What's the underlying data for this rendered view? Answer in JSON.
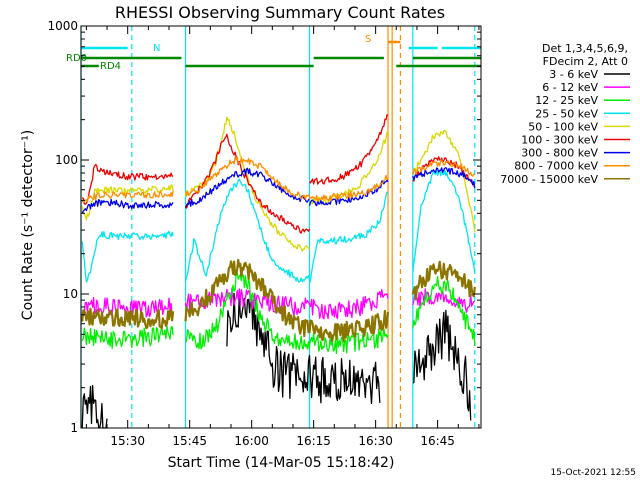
{
  "chart_data": {
    "type": "line",
    "title": "RHESSI Observing Summary Count Rates",
    "xlabel": "Start Time (14-Mar-05 15:18:42)",
    "ylabel": "Count Rate (s⁻¹ detector⁻¹)",
    "xlim": [
      "15:18:42",
      "16:55:30"
    ],
    "ylim": [
      1,
      1000
    ],
    "yscale": "log",
    "x_ticks": [
      "15:30",
      "15:45",
      "16:00",
      "16:15",
      "16:30",
      "16:45"
    ],
    "y_ticks": [
      {
        "value": 1,
        "label": "1"
      },
      {
        "value": 10,
        "label": "10"
      },
      {
        "value": 100,
        "label": "100"
      },
      {
        "value": 1000,
        "label": "1000"
      }
    ],
    "legend": {
      "position": "right",
      "header": [
        "Det 1,3,4,5,6,9,",
        "FDecim 2, Att 0"
      ],
      "entries": [
        {
          "name": "3 - 6 keV",
          "color": "#000000"
        },
        {
          "name": "6 - 12 keV",
          "color": "#ff00ff"
        },
        {
          "name": "12 - 25 keV",
          "color": "#00ee00"
        },
        {
          "name": "25 - 50 keV",
          "color": "#00e5ee"
        },
        {
          "name": "50 - 100 keV",
          "color": "#d8d800"
        },
        {
          "name": "100 - 300 keV",
          "color": "#ee0000"
        },
        {
          "name": "300 - 800 keV",
          "color": "#0000ee"
        },
        {
          "name": "800 - 7000 keV",
          "color": "#ff8c00"
        },
        {
          "name": "7000 - 15000 keV",
          "color": "#8b7500"
        }
      ]
    },
    "series": [
      {
        "name": "3 - 6 keV",
        "color": "#000000",
        "segments": [
          {
            "x": [
              "15:19",
              "15:21",
              "15:23",
              "15:25"
            ],
            "y": [
              1.1,
              1.6,
              1.2,
              1.0
            ]
          },
          {
            "x": [
              "15:54",
              "15:56",
              "15:58",
              "16:00",
              "16:02",
              "16:05",
              "16:08",
              "16:12",
              "16:16",
              "16:20",
              "16:25",
              "16:28",
              "16:31"
            ],
            "y": [
              5,
              7,
              9,
              8,
              5,
              3,
              2.5,
              2.3,
              2.3,
              2.2,
              2.2,
              2.1,
              2.2
            ]
          },
          {
            "x": [
              "16:39",
              "16:41",
              "16:44",
              "16:47",
              "16:50",
              "16:52",
              "16:53"
            ],
            "y": [
              2.8,
              3.2,
              4,
              5,
              3.2,
              2.2,
              1.2
            ]
          }
        ]
      },
      {
        "name": "6 - 12 keV",
        "color": "#ff00ff",
        "segments": [
          {
            "x": [
              "15:19",
              "15:25",
              "15:30",
              "15:35",
              "15:41"
            ],
            "y": [
              8,
              8,
              7.5,
              7.8,
              8
            ]
          },
          {
            "x": [
              "15:44",
              "15:48",
              "15:52",
              "15:56",
              "16:00",
              "16:05",
              "16:10",
              "16:14"
            ],
            "y": [
              8.5,
              9,
              9.5,
              9.5,
              9,
              8.5,
              8,
              8
            ]
          },
          {
            "x": [
              "16:14",
              "16:18",
              "16:22",
              "16:26",
              "16:30",
              "16:33"
            ],
            "y": [
              8,
              7.5,
              7.5,
              8,
              9,
              10
            ]
          },
          {
            "x": [
              "16:39",
              "16:44",
              "16:48",
              "16:52",
              "16:54"
            ],
            "y": [
              9,
              9.5,
              9,
              8.5,
              8.5
            ]
          }
        ]
      },
      {
        "name": "12 - 25 keV",
        "color": "#00ee00",
        "segments": [
          {
            "x": [
              "15:19",
              "15:25",
              "15:30",
              "15:35",
              "15:41"
            ],
            "y": [
              5,
              4.5,
              4.5,
              4.8,
              5
            ]
          },
          {
            "x": [
              "15:44",
              "15:48",
              "15:52",
              "15:55",
              "15:57",
              "15:59",
              "16:01",
              "16:03",
              "16:05",
              "16:08",
              "16:11",
              "16:14"
            ],
            "y": [
              5,
              4.5,
              6,
              11,
              13,
              12,
              8,
              6,
              5,
              4.5,
              4.5,
              4.5
            ]
          },
          {
            "x": [
              "16:14",
              "16:18",
              "16:22",
              "16:26",
              "16:30",
              "16:33"
            ],
            "y": [
              4.5,
              4.2,
              4.2,
              4.4,
              4.6,
              5
            ]
          },
          {
            "x": [
              "16:39",
              "16:42",
              "16:45",
              "16:48",
              "16:51",
              "16:54"
            ],
            "y": [
              6,
              9,
              12,
              11,
              7,
              4.5
            ]
          }
        ]
      },
      {
        "name": "25 - 50 keV",
        "color": "#00e5ee",
        "segments": [
          {
            "x": [
              "15:19",
              "15:20",
              "15:21",
              "15:23",
              "15:27",
              "15:32",
              "15:37",
              "15:41"
            ],
            "y": [
              25,
              12,
              15,
              28,
              27,
              27,
              27,
              28
            ]
          },
          {
            "x": [
              "15:44",
              "15:46",
              "15:49",
              "15:51",
              "15:53",
              "15:55",
              "15:57",
              "15:59",
              "16:01",
              "16:03",
              "16:05",
              "16:08",
              "16:11",
              "16:14"
            ],
            "y": [
              12,
              25,
              14,
              25,
              45,
              60,
              70,
              60,
              40,
              25,
              18,
              15,
              13,
              13
            ]
          },
          {
            "x": [
              "16:14",
              "16:16",
              "16:20",
              "16:24",
              "16:28",
              "16:31",
              "16:33"
            ],
            "y": [
              12,
              25,
              25,
              26,
              28,
              35,
              60
            ]
          },
          {
            "x": [
              "16:39",
              "16:41",
              "16:44",
              "16:47",
              "16:50",
              "16:52",
              "16:54"
            ],
            "y": [
              15,
              45,
              80,
              80,
              55,
              30,
              15
            ]
          }
        ]
      },
      {
        "name": "50 - 100 keV",
        "color": "#d8d800",
        "segments": [
          {
            "x": [
              "15:19",
              "15:20",
              "15:22",
              "15:25",
              "15:30",
              "15:35",
              "15:41"
            ],
            "y": [
              45,
              35,
              60,
              60,
              58,
              60,
              62
            ]
          },
          {
            "x": [
              "15:44",
              "15:46",
              "15:49",
              "15:51",
              "15:53",
              "15:54",
              "15:56",
              "15:58",
              "16:00",
              "16:03",
              "16:06",
              "16:09",
              "16:12",
              "16:14"
            ],
            "y": [
              55,
              60,
              70,
              90,
              150,
              210,
              150,
              90,
              60,
              40,
              30,
              25,
              22,
              22
            ]
          },
          {
            "x": [
              "16:14",
              "16:18",
              "16:22",
              "16:26",
              "16:30",
              "16:33"
            ],
            "y": [
              50,
              50,
              55,
              65,
              95,
              160
            ]
          },
          {
            "x": [
              "16:39",
              "16:41",
              "16:44",
              "16:47",
              "16:50",
              "16:52",
              "16:54"
            ],
            "y": [
              80,
              100,
              150,
              160,
              110,
              60,
              30
            ]
          }
        ]
      },
      {
        "name": "100 - 300 keV",
        "color": "#ee0000",
        "segments": [
          {
            "x": [
              "15:19",
              "15:20",
              "15:22",
              "15:25",
              "15:30",
              "15:35",
              "15:41"
            ],
            "y": [
              55,
              45,
              90,
              80,
              75,
              75,
              78
            ]
          },
          {
            "x": [
              "15:44",
              "15:46",
              "15:49",
              "15:51",
              "15:53",
              "15:54",
              "15:56",
              "15:58",
              "16:00",
              "16:03",
              "16:06",
              "16:09",
              "16:12",
              "16:14"
            ],
            "y": [
              45,
              55,
              70,
              95,
              140,
              150,
              110,
              80,
              60,
              45,
              38,
              34,
              30,
              30
            ]
          },
          {
            "x": [
              "16:14",
              "16:18",
              "16:22",
              "16:26",
              "16:30",
              "16:33"
            ],
            "y": [
              70,
              70,
              75,
              90,
              130,
              220
            ]
          },
          {
            "x": [
              "16:39",
              "16:41",
              "16:44",
              "16:47",
              "16:50",
              "16:52",
              "16:54"
            ],
            "y": [
              70,
              85,
              100,
              100,
              90,
              75,
              60
            ]
          }
        ]
      },
      {
        "name": "300 - 800 keV",
        "color": "#0000ee",
        "segments": [
          {
            "x": [
              "15:19",
              "15:21",
              "15:23",
              "15:26",
              "15:30",
              "15:35",
              "15:41"
            ],
            "y": [
              42,
              45,
              48,
              48,
              46,
              46,
              47
            ]
          },
          {
            "x": [
              "15:44",
              "15:47",
              "15:50",
              "15:53",
              "15:56",
              "15:59",
              "16:02",
              "16:05",
              "16:08",
              "16:11",
              "16:14"
            ],
            "y": [
              46,
              50,
              58,
              68,
              78,
              82,
              78,
              68,
              58,
              52,
              50
            ]
          },
          {
            "x": [
              "16:14",
              "16:18",
              "16:22",
              "16:26",
              "16:30",
              "16:33"
            ],
            "y": [
              48,
              48,
              50,
              52,
              60,
              72
            ]
          },
          {
            "x": [
              "16:39",
              "16:42",
              "16:45",
              "16:48",
              "16:51",
              "16:54"
            ],
            "y": [
              75,
              80,
              85,
              83,
              78,
              65
            ]
          }
        ]
      },
      {
        "name": "800 - 7000 keV",
        "color": "#ff8c00",
        "segments": [
          {
            "x": [
              "15:19",
              "15:21",
              "15:24",
              "15:28",
              "15:32",
              "15:36",
              "15:41"
            ],
            "y": [
              50,
              52,
              55,
              55,
              55,
              55,
              56
            ]
          },
          {
            "x": [
              "15:44",
              "15:47",
              "15:50",
              "15:53",
              "15:56",
              "15:59",
              "16:02",
              "16:05",
              "16:08",
              "16:11",
              "16:14"
            ],
            "y": [
              55,
              60,
              72,
              88,
              100,
              100,
              90,
              75,
              62,
              55,
              52
            ]
          },
          {
            "x": [
              "16:14",
              "16:18",
              "16:22",
              "16:26",
              "16:30",
              "16:33"
            ],
            "y": [
              52,
              52,
              54,
              56,
              62,
              75
            ]
          },
          {
            "x": [
              "16:39",
              "16:42",
              "16:45",
              "16:48",
              "16:51",
              "16:54"
            ],
            "y": [
              80,
              88,
              95,
              95,
              88,
              75
            ]
          }
        ]
      },
      {
        "name": "7000 - 15000 keV",
        "color": "#8b7500",
        "segments": [
          {
            "x": [
              "15:19",
              "15:24",
              "15:29",
              "15:34",
              "15:38",
              "15:41"
            ],
            "y": [
              7,
              6.5,
              6.5,
              6.5,
              6.5,
              7
            ]
          },
          {
            "x": [
              "15:44",
              "15:47",
              "15:50",
              "15:53",
              "15:56",
              "15:59",
              "16:02",
              "16:05",
              "16:08",
              "16:11",
              "16:14"
            ],
            "y": [
              7,
              8,
              10,
              13,
              16,
              15,
              12,
              9,
              7,
              6,
              5.5
            ]
          },
          {
            "x": [
              "16:14",
              "16:18",
              "16:22",
              "16:26",
              "16:30",
              "16:33"
            ],
            "y": [
              5.5,
              5.2,
              5.2,
              5.5,
              6,
              6.5
            ]
          },
          {
            "x": [
              "16:39",
              "16:42",
              "16:45",
              "16:48",
              "16:51",
              "16:54"
            ],
            "y": [
              10,
              13,
              15,
              15,
              13,
              10
            ]
          }
        ]
      }
    ],
    "annotations": {
      "status_bars": [
        {
          "label": "N",
          "color": "#00e5ee",
          "segments": [
            [
              "15:18:42",
              "15:30"
            ],
            [
              "16:38",
              "16:45"
            ],
            [
              "16:46",
              "16:55:30"
            ]
          ]
        },
        {
          "label": "RD0",
          "color": "#008800",
          "segments": [
            [
              "15:18:42",
              "15:43"
            ],
            [
              "16:15",
              "16:32"
            ],
            [
              "16:39",
              "16:55:30"
            ]
          ]
        },
        {
          "label": "RD4",
          "color": "#008800",
          "segments": [
            [
              "15:18:42",
              "15:23"
            ],
            [
              "15:44",
              "16:15"
            ],
            [
              "16:35",
              "16:55:30"
            ]
          ]
        },
        {
          "label": "S",
          "color": "#ff8c00",
          "segments": [
            [
              "16:33",
              "16:36"
            ]
          ]
        }
      ],
      "vlines": [
        {
          "time": "15:18:42",
          "color": "#00e5ee",
          "style": "solid"
        },
        {
          "time": "15:31",
          "color": "#00e5ee",
          "style": "dashed"
        },
        {
          "time": "15:44",
          "color": "#00e5ee",
          "style": "solid"
        },
        {
          "time": "16:14",
          "color": "#00e5ee",
          "style": "solid"
        },
        {
          "time": "16:33",
          "color": "#ff8c00",
          "style": "solid"
        },
        {
          "time": "16:34",
          "color": "#ff8c00",
          "style": "solid"
        },
        {
          "time": "16:36",
          "color": "#ff8c00",
          "style": "dashed"
        },
        {
          "time": "16:39",
          "color": "#00e5ee",
          "style": "solid"
        },
        {
          "time": "16:54",
          "color": "#00e5ee",
          "style": "dashed"
        }
      ]
    }
  },
  "footer": {
    "timestamp": "15-Oct-2021 12:55"
  }
}
